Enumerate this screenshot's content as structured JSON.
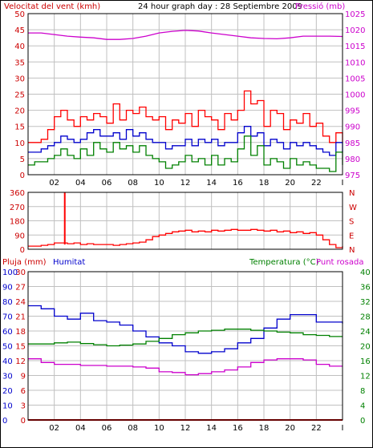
{
  "chart_data": [
    {
      "type": "line",
      "title": "24 hour graph day : 28 Septiembre 2009",
      "left_label": "Velocitat del vent (kmh)",
      "right_label": "Pressió (mb)",
      "x_ticks": [
        "02",
        "04",
        "06",
        "08",
        "10",
        "12",
        "14",
        "16",
        "18",
        "20",
        "22",
        "I"
      ],
      "y_left_ticks": [
        "0",
        "5",
        "10",
        "15",
        "20",
        "25",
        "30",
        "35",
        "40",
        "45",
        "50"
      ],
      "y_left_range": [
        0,
        50
      ],
      "y_right_ticks": [
        "975",
        "980",
        "985",
        "990",
        "995",
        "1000",
        "1005",
        "1010",
        "1015",
        "1020",
        "1025"
      ],
      "y_right_range": [
        975,
        1025
      ],
      "colors": {
        "gust": "#ff0000",
        "average": "#0000cc",
        "minimum": "#008000",
        "pressure": "#cc00cc"
      },
      "series": [
        {
          "key": "gust",
          "x": [
            0,
            0.5,
            1,
            1.5,
            2,
            2.5,
            3,
            3.5,
            4,
            4.5,
            5,
            5.5,
            6,
            6.5,
            7,
            7.5,
            8,
            8.5,
            9,
            9.5,
            10,
            10.5,
            11,
            11.5,
            12,
            12.5,
            13,
            13.5,
            14,
            14.5,
            15,
            15.5,
            16,
            16.5,
            17,
            17.5,
            18,
            18.5,
            19,
            19.5,
            20,
            20.5,
            21,
            21.5,
            22,
            22.5,
            23,
            23.5,
            24
          ],
          "values": [
            10,
            10,
            11,
            14,
            18,
            20,
            17,
            15,
            18,
            17,
            19,
            18,
            16,
            22,
            17,
            20,
            19,
            21,
            18,
            17,
            18,
            14,
            17,
            16,
            19,
            15,
            20,
            18,
            17,
            14,
            19,
            17,
            20,
            26,
            22,
            23,
            15,
            20,
            19,
            14,
            17,
            16,
            19,
            15,
            16,
            12,
            10,
            13,
            10
          ]
        },
        {
          "key": "average",
          "x": [
            0,
            0.5,
            1,
            1.5,
            2,
            2.5,
            3,
            3.5,
            4,
            4.5,
            5,
            5.5,
            6,
            6.5,
            7,
            7.5,
            8,
            8.5,
            9,
            9.5,
            10,
            10.5,
            11,
            11.5,
            12,
            12.5,
            13,
            13.5,
            14,
            14.5,
            15,
            15.5,
            16,
            16.5,
            17,
            17.5,
            18,
            18.5,
            19,
            19.5,
            20,
            20.5,
            21,
            21.5,
            22,
            22.5,
            23,
            23.5,
            24
          ],
          "values": [
            7,
            7,
            8,
            9,
            10,
            12,
            11,
            10,
            11,
            13,
            14,
            12,
            12,
            13,
            11,
            14,
            12,
            13,
            11,
            10,
            10,
            8,
            9,
            9,
            11,
            9,
            11,
            10,
            11,
            9,
            10,
            10,
            13,
            15,
            12,
            13,
            9,
            11,
            10,
            8,
            10,
            9,
            10,
            9,
            8,
            7,
            6,
            10,
            7
          ]
        },
        {
          "key": "minimum",
          "x": [
            0,
            0.5,
            1,
            1.5,
            2,
            2.5,
            3,
            3.5,
            4,
            4.5,
            5,
            5.5,
            6,
            6.5,
            7,
            7.5,
            8,
            8.5,
            9,
            9.5,
            10,
            10.5,
            11,
            11.5,
            12,
            12.5,
            13,
            13.5,
            14,
            14.5,
            15,
            15.5,
            16,
            16.5,
            17,
            17.5,
            18,
            18.5,
            19,
            19.5,
            20,
            20.5,
            21,
            21.5,
            22,
            22.5,
            23,
            23.5,
            24
          ],
          "values": [
            3,
            4,
            4,
            5,
            6,
            8,
            6,
            5,
            8,
            6,
            10,
            8,
            7,
            10,
            8,
            9,
            7,
            9,
            6,
            5,
            4,
            2,
            3,
            4,
            6,
            4,
            5,
            3,
            6,
            3,
            5,
            4,
            8,
            12,
            6,
            9,
            3,
            5,
            4,
            2,
            5,
            3,
            4,
            3,
            2,
            2,
            1,
            7,
            3
          ]
        },
        {
          "key": "pressure",
          "x": [
            0,
            1,
            2,
            3,
            4,
            5,
            6,
            7,
            8,
            9,
            10,
            11,
            12,
            13,
            14,
            15,
            16,
            17,
            18,
            19,
            20,
            21,
            22,
            23,
            24
          ],
          "values": [
            1019,
            1019,
            1018.5,
            1018,
            1017.7,
            1017.5,
            1017,
            1017,
            1017.3,
            1018,
            1019,
            1019.5,
            1019.8,
            1019.6,
            1019,
            1018.5,
            1018,
            1017.5,
            1017.3,
            1017.2,
            1017.5,
            1018,
            1018,
            1018,
            1017.9
          ]
        }
      ]
    },
    {
      "type": "line",
      "title": "",
      "left_label": "",
      "right_label": "N W S E N",
      "y_left_ticks": [
        "0",
        "90",
        "180",
        "270",
        "360"
      ],
      "y_left_range": [
        0,
        360
      ],
      "y_right_ticks": [
        "N",
        "E",
        "S",
        "W",
        "N"
      ],
      "colors": {
        "direction": "#ff0000"
      },
      "spike": {
        "x": 2.8,
        "value": 360
      },
      "series": [
        {
          "key": "direction",
          "x": [
            0,
            0.5,
            1,
            1.5,
            2,
            2.5,
            3,
            3.5,
            4,
            4.5,
            5,
            5.5,
            6,
            6.5,
            7,
            7.5,
            8,
            8.5,
            9,
            9.5,
            10,
            10.5,
            11,
            11.5,
            12,
            12.5,
            13,
            13.5,
            14,
            14.5,
            15,
            15.5,
            16,
            16.5,
            17,
            17.5,
            18,
            18.5,
            19,
            19.5,
            20,
            20.5,
            21,
            21.5,
            22,
            22.5,
            23,
            23.5,
            24
          ],
          "values": [
            20,
            20,
            25,
            30,
            40,
            40,
            35,
            40,
            30,
            35,
            30,
            30,
            30,
            25,
            30,
            35,
            40,
            45,
            60,
            80,
            90,
            100,
            110,
            115,
            120,
            110,
            115,
            110,
            120,
            115,
            120,
            125,
            120,
            120,
            125,
            120,
            115,
            120,
            110,
            115,
            105,
            110,
            100,
            105,
            90,
            60,
            30,
            10,
            20
          ]
        }
      ]
    },
    {
      "type": "line",
      "title": "",
      "left_label": "Pluja (mm)",
      "left_label_2": "Humitat",
      "right_label": "Temperatura (°C)",
      "right_label_2": "Punt rosada",
      "y_left_ticks": [
        "0",
        "3",
        "6",
        "9",
        "12",
        "15",
        "18",
        "21",
        "24",
        "27",
        "30"
      ],
      "y_left_range": [
        0,
        30
      ],
      "y_hum_ticks": [
        "0",
        "10",
        "20",
        "30",
        "40",
        "50",
        "60",
        "70",
        "80",
        "90",
        "100"
      ],
      "y_right_ticks": [
        "0",
        "4",
        "8",
        "12",
        "16",
        "20",
        "24",
        "28",
        "32",
        "36",
        "40"
      ],
      "y_right_range": [
        0,
        40
      ],
      "colors": {
        "rain": "#cc0000",
        "humidity": "#0000cc",
        "temperature": "#008000",
        "dewpoint": "#cc00cc"
      },
      "series": [
        {
          "key": "rain",
          "x": [
            0,
            24
          ],
          "values": [
            0,
            0
          ]
        },
        {
          "key": "humidity",
          "x": [
            0,
            1,
            2,
            3,
            4,
            5,
            6,
            7,
            8,
            9,
            10,
            11,
            12,
            13,
            14,
            15,
            16,
            17,
            18,
            19,
            20,
            21,
            22,
            23,
            24
          ],
          "values": [
            77,
            75,
            70,
            68,
            72,
            67,
            66,
            64,
            60,
            56,
            52,
            50,
            46,
            45,
            46,
            48,
            52,
            55,
            62,
            68,
            71,
            71,
            66,
            66,
            65
          ]
        },
        {
          "key": "temperature",
          "x": [
            0,
            1,
            2,
            3,
            4,
            5,
            6,
            7,
            8,
            9,
            10,
            11,
            12,
            13,
            14,
            15,
            16,
            17,
            18,
            19,
            20,
            21,
            22,
            23,
            24
          ],
          "values": [
            20.5,
            20.5,
            20.8,
            21,
            20.6,
            20.3,
            20,
            20.2,
            20.5,
            21.2,
            22,
            23,
            23.5,
            24,
            24.2,
            24.5,
            24.5,
            24.2,
            24,
            23.7,
            23.5,
            23,
            22.8,
            22.5,
            22.5
          ]
        },
        {
          "key": "dewpoint",
          "x": [
            0,
            1,
            2,
            3,
            4,
            5,
            6,
            7,
            8,
            9,
            10,
            11,
            12,
            13,
            14,
            15,
            16,
            17,
            18,
            19,
            20,
            21,
            22,
            23,
            24
          ],
          "values": [
            16.5,
            15.5,
            15,
            15,
            14.7,
            14.7,
            14.5,
            14.5,
            14.3,
            14,
            13,
            12.8,
            12.2,
            12.5,
            13,
            13.5,
            14.3,
            15.5,
            16.2,
            16.5,
            16.5,
            16.2,
            15,
            14.5,
            14.5
          ]
        }
      ]
    }
  ]
}
